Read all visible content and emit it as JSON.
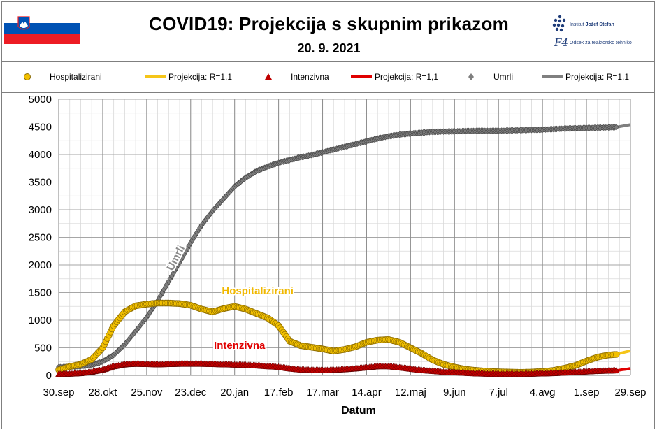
{
  "header": {
    "title": "COVID19: Projekcija  s skupnim prikazom",
    "date": "20. 9. 2021",
    "logo_line1_a": "Institut ",
    "logo_line1_b": "Jožef Stefan",
    "logo_line2": "Odsek za reaktorsko tehniko",
    "logo_mark": "F4"
  },
  "colors": {
    "hosp_fill": "#f2c000",
    "hosp_line": "#f5c518",
    "hosp_marker_stroke": "#8a6a00",
    "int_fill": "#c00000",
    "int_line": "#e00000",
    "umrli_fill": "#7f7f7f",
    "umrli_line": "#7f7f7f",
    "umrli_marker_stroke": "#404040",
    "label_hosp": "#f0b800",
    "label_int": "#e00000",
    "grid": "#bfbfbf",
    "axis": "#808080"
  },
  "legend": [
    {
      "key": "hosp",
      "kind": "marker-circle",
      "label": "Hospitalizirani"
    },
    {
      "key": "hosp_proj",
      "kind": "line",
      "label": "Projekcija: R=1,1"
    },
    {
      "key": "int",
      "kind": "marker-triangle",
      "label": "Intenzivna"
    },
    {
      "key": "int_proj",
      "kind": "line",
      "label": "Projekcija: R=1,1"
    },
    {
      "key": "umrli",
      "kind": "marker-diamond",
      "label": "Umrli"
    },
    {
      "key": "umrli_proj",
      "kind": "line",
      "label": "Projekcija: R=1,1"
    }
  ],
  "chart_data": {
    "type": "line",
    "title": "COVID19: Projekcija  s skupnim prikazom",
    "subtitle": "20. 9. 2021",
    "xlabel": "Datum",
    "ylabel": "",
    "ylim": [
      0,
      5000
    ],
    "yticks": [
      0,
      500,
      1000,
      1500,
      2000,
      2500,
      3000,
      3500,
      4000,
      4500,
      5000
    ],
    "ytick_labels": [
      "0",
      "500",
      "1000",
      "1500",
      "2000",
      "2500",
      "3000",
      "3500",
      "4000",
      "4500",
      "5000"
    ],
    "xlim_days": [
      0,
      364
    ],
    "xticks_days": [
      0,
      28,
      56,
      84,
      112,
      140,
      168,
      196,
      224,
      252,
      280,
      308,
      336,
      364
    ],
    "xtick_labels": [
      "30.sep",
      "28.okt",
      "25.nov",
      "23.dec",
      "20.jan",
      "17.feb",
      "17.mar",
      "14.apr",
      "12.maj",
      "9.jun",
      "7.jul",
      "4.avg",
      "1.sep",
      "29.sep"
    ],
    "minor_grid_step_days": 7,
    "grid": true,
    "last_observed_day": 355,
    "series": [
      {
        "name": "Hospitalizirani",
        "kind": "observed",
        "marker": "circle",
        "x": [
          0,
          7,
          14,
          21,
          28,
          35,
          42,
          49,
          56,
          63,
          70,
          77,
          84,
          91,
          98,
          105,
          112,
          119,
          126,
          133,
          140,
          147,
          154,
          161,
          168,
          175,
          182,
          189,
          196,
          203,
          210,
          217,
          224,
          231,
          238,
          245,
          252,
          259,
          266,
          273,
          280,
          287,
          294,
          301,
          308,
          315,
          322,
          329,
          336,
          343,
          350,
          355
        ],
        "y": [
          100,
          160,
          200,
          290,
          500,
          900,
          1150,
          1260,
          1290,
          1310,
          1310,
          1300,
          1270,
          1200,
          1150,
          1210,
          1250,
          1200,
          1120,
          1040,
          900,
          620,
          540,
          510,
          480,
          440,
          470,
          520,
          600,
          640,
          650,
          600,
          500,
          400,
          280,
          200,
          150,
          110,
          90,
          75,
          65,
          60,
          55,
          60,
          70,
          90,
          130,
          180,
          260,
          330,
          370,
          380
        ]
      },
      {
        "name": "Projekcija: R=1,1",
        "kind": "projection",
        "of": "Hospitalizirani",
        "x": [
          355,
          358,
          361,
          364
        ],
        "y": [
          380,
          405,
          425,
          445
        ]
      },
      {
        "name": "Intenzivna",
        "kind": "observed",
        "marker": "triangle",
        "x": [
          0,
          7,
          14,
          21,
          28,
          35,
          42,
          49,
          56,
          63,
          70,
          77,
          84,
          91,
          98,
          105,
          112,
          119,
          126,
          133,
          140,
          147,
          154,
          161,
          168,
          175,
          182,
          189,
          196,
          203,
          210,
          217,
          224,
          231,
          238,
          245,
          252,
          259,
          266,
          273,
          280,
          287,
          294,
          301,
          308,
          315,
          322,
          329,
          336,
          343,
          350,
          355
        ],
        "y": [
          20,
          25,
          35,
          60,
          100,
          160,
          195,
          205,
          200,
          195,
          200,
          205,
          205,
          205,
          200,
          195,
          190,
          185,
          175,
          160,
          150,
          120,
          100,
          95,
          90,
          95,
          105,
          120,
          140,
          160,
          160,
          140,
          115,
          90,
          75,
          60,
          50,
          40,
          30,
          25,
          20,
          20,
          20,
          25,
          30,
          35,
          45,
          55,
          65,
          75,
          80,
          85
        ]
      },
      {
        "name": "Projekcija: R=1,1",
        "kind": "projection",
        "of": "Intenzivna",
        "x": [
          355,
          358,
          361,
          364
        ],
        "y": [
          85,
          100,
          110,
          125
        ]
      },
      {
        "name": "Umrli",
        "kind": "observed",
        "marker": "diamond",
        "x": [
          0,
          7,
          14,
          21,
          28,
          35,
          42,
          49,
          56,
          63,
          70,
          77,
          84,
          91,
          98,
          105,
          112,
          119,
          126,
          133,
          140,
          147,
          154,
          161,
          168,
          175,
          182,
          189,
          196,
          203,
          210,
          217,
          224,
          231,
          238,
          245,
          252,
          259,
          266,
          273,
          280,
          287,
          294,
          301,
          308,
          315,
          322,
          329,
          336,
          343,
          350,
          355
        ],
        "y": [
          150,
          155,
          165,
          190,
          250,
          370,
          560,
          800,
          1050,
          1350,
          1700,
          2050,
          2400,
          2720,
          2980,
          3200,
          3420,
          3580,
          3700,
          3780,
          3850,
          3900,
          3950,
          3990,
          4040,
          4090,
          4140,
          4190,
          4240,
          4290,
          4330,
          4360,
          4380,
          4395,
          4410,
          4415,
          4420,
          4425,
          4430,
          4430,
          4430,
          4435,
          4440,
          4445,
          4450,
          4460,
          4470,
          4475,
          4480,
          4485,
          4490,
          4495
        ]
      },
      {
        "name": "Projekcija: R=1,1",
        "kind": "projection",
        "of": "Umrli",
        "x": [
          355,
          358,
          361,
          364
        ],
        "y": [
          4495,
          4510,
          4525,
          4540
        ]
      }
    ],
    "annotations": [
      {
        "text": "Umrli",
        "series": "Umrli",
        "at_day": 80,
        "rotate_deg": -63
      },
      {
        "text": "Hospitalizirani",
        "series": "Hospitalizirani",
        "at_day": 112
      },
      {
        "text": "Intenzivna",
        "series": "Intenzivna",
        "at_day": 96
      }
    ]
  }
}
